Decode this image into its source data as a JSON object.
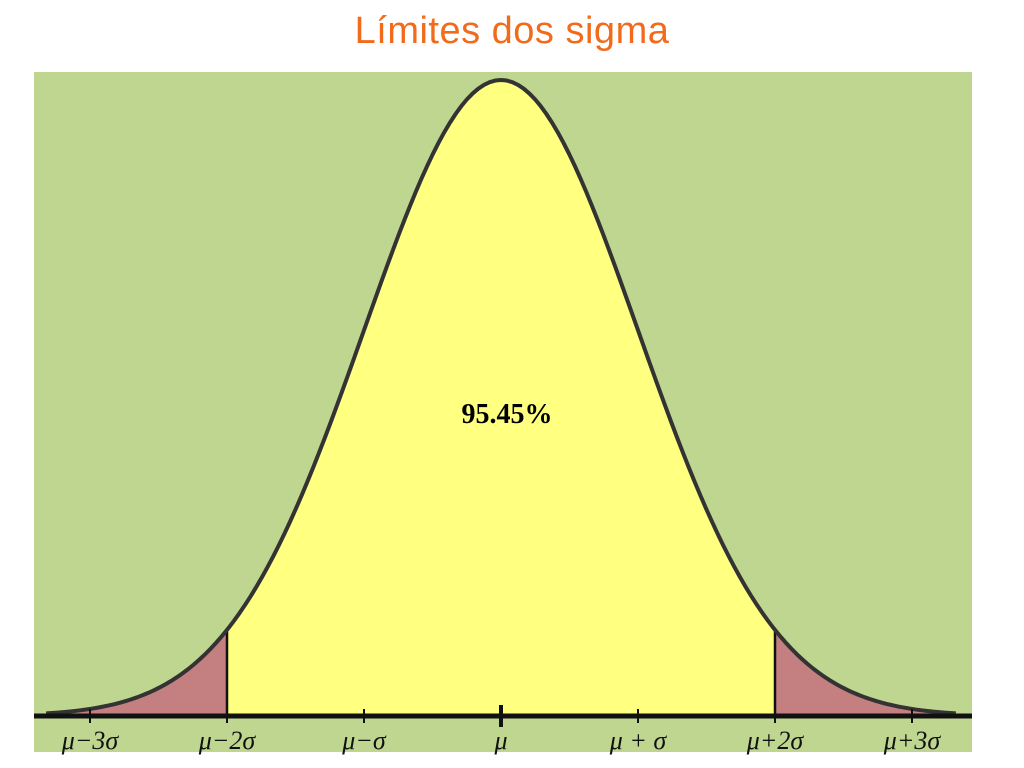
{
  "title": "Límites dos sigma",
  "colors": {
    "title": "#F26B1D",
    "background": "#BED68F",
    "central_fill": "#FFFF80",
    "tail_fill": "#C48080",
    "curve": "#333333",
    "axis": "#111111"
  },
  "chart_data": {
    "type": "area",
    "distribution": "normal",
    "x_range_sigma": [
      -3,
      3
    ],
    "shaded_interval_sigma": [
      -2,
      2
    ],
    "central_label": "95.45%",
    "tick_positions_sigma": [
      -3,
      -2,
      -1,
      0,
      1,
      2,
      3
    ],
    "tick_labels": [
      "μ−3σ",
      "μ−2σ",
      "μ−σ",
      "μ",
      "μ + σ",
      "μ+2σ",
      "μ+3σ"
    ],
    "grid": false,
    "legend": "none"
  }
}
